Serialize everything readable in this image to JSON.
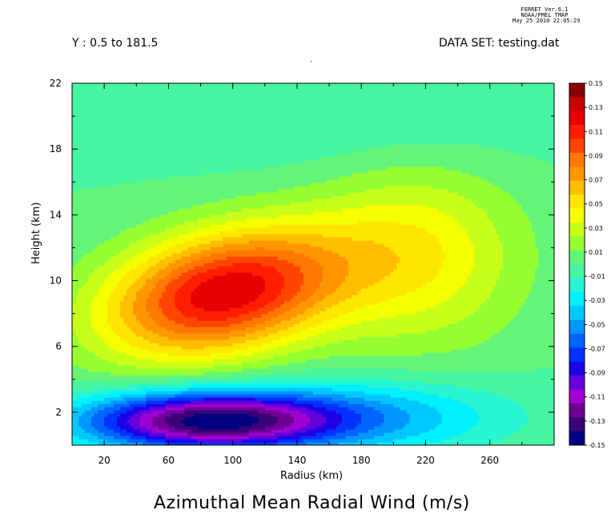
{
  "header": {
    "program": "FERRET  Ver.6.1",
    "org": "NOAA/PMEL TMAP",
    "timestamp": "May 25 2010 22:05:29",
    "subset_label": "Y : 0.5 to 181.5",
    "dataset_label": "DATA SET: testing.dat",
    "marker": "."
  },
  "chart_data": {
    "type": "heatmap",
    "title": "Azimuthal Mean Radial Wind (m/s)",
    "xlabel": "Radius (km)",
    "ylabel": "Height (km)",
    "xlim": [
      0,
      300
    ],
    "ylim": [
      0,
      22
    ],
    "x_ticks": [
      20,
      60,
      100,
      140,
      180,
      220,
      260
    ],
    "y_ticks": [
      2,
      6,
      10,
      14,
      18,
      22
    ],
    "colorbar": {
      "levels": [
        0.15,
        0.13,
        0.11,
        0.09,
        0.07,
        0.05,
        0.03,
        0.01,
        -0.01,
        -0.03,
        -0.05,
        -0.07,
        -0.09,
        -0.11,
        -0.13,
        -0.15
      ],
      "labels": [
        "0.15",
        "0.13",
        "0.11",
        "0.09",
        "0.07",
        "0.05",
        "0.03",
        "0.01",
        "-0.01",
        "-0.03",
        "-0.05",
        "-0.07",
        "-0.09",
        "-0.11",
        "-0.13",
        "-0.15"
      ],
      "colors_top_to_bottom": [
        "#8b0000",
        "#c80000",
        "#e60000",
        "#ff1e00",
        "#ff4600",
        "#ff7800",
        "#ff9600",
        "#ffbe00",
        "#ffe600",
        "#f5ff00",
        "#c8ff19",
        "#96ff32",
        "#64f578",
        "#46f5a0",
        "#28f5d2",
        "#00f0ff",
        "#00c8ff",
        "#0096ff",
        "#0064ff",
        "#0032ff",
        "#1e00e6",
        "#6400dc",
        "#a000d2",
        "#6e0096",
        "#3c0078",
        "#000080"
      ]
    },
    "features": [
      {
        "name": "upper outflow maximum",
        "x": 95,
        "y": 9.3,
        "value": 0.12
      },
      {
        "name": "lower inflow minimum",
        "x": 75,
        "y": 1.5,
        "value": -0.14
      }
    ]
  }
}
